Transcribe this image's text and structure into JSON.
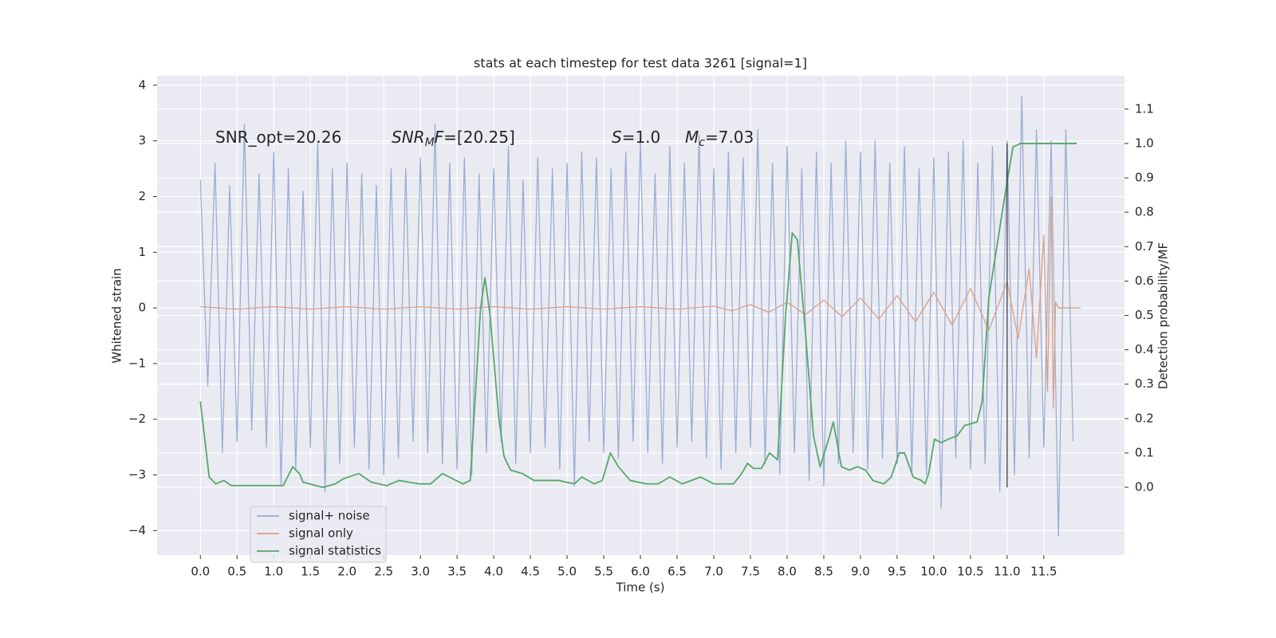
{
  "chart_data": {
    "type": "line",
    "title": "stats at each timestep for test data 3261 [signal=1]",
    "xlabel": "Time (s)",
    "ylabel": "Whitened strain",
    "y2label": "Detection probability/MF",
    "xlim": [
      -0.59,
      12.6
    ],
    "ylim": [
      -4.44,
      4.17
    ],
    "y2lim": [
      -0.197,
      1.197
    ],
    "grid": true,
    "legend_loc": "lower left",
    "xticks": [
      {
        "value": 0,
        "label": "0.0"
      },
      {
        "value": 0.5,
        "label": "0.5"
      },
      {
        "value": 1,
        "label": "1.0"
      },
      {
        "value": 1.5,
        "label": "1.5"
      },
      {
        "value": 2,
        "label": "2.0"
      },
      {
        "value": 2.5,
        "label": "2.5"
      },
      {
        "value": 3,
        "label": "3.0"
      },
      {
        "value": 3.5,
        "label": "3.5"
      },
      {
        "value": 4,
        "label": "4.0"
      },
      {
        "value": 4.5,
        "label": "4.5"
      },
      {
        "value": 5,
        "label": "5.0"
      },
      {
        "value": 5.5,
        "label": "5.5"
      },
      {
        "value": 6,
        "label": "6.0"
      },
      {
        "value": 6.5,
        "label": "6.5"
      },
      {
        "value": 7,
        "label": "7.0"
      },
      {
        "value": 7.5,
        "label": "7.5"
      },
      {
        "value": 8,
        "label": "8.0"
      },
      {
        "value": 8.5,
        "label": "8.5"
      },
      {
        "value": 9,
        "label": "9.0"
      },
      {
        "value": 9.5,
        "label": "9.5"
      },
      {
        "value": 10,
        "label": "10.0"
      },
      {
        "value": 10.5,
        "label": "10.5"
      },
      {
        "value": 11,
        "label": "11.0"
      },
      {
        "value": 11.5,
        "label": "11.5"
      }
    ],
    "yticks": [
      {
        "value": -4,
        "label": "−4"
      },
      {
        "value": -3,
        "label": "−3"
      },
      {
        "value": -2,
        "label": "−2"
      },
      {
        "value": -1,
        "label": "−1"
      },
      0,
      1,
      2,
      3,
      4
    ],
    "y2ticks": [
      {
        "value": 0,
        "label": "0.0"
      },
      {
        "value": 0.1,
        "label": "0.1"
      },
      {
        "value": 0.2,
        "label": "0.2"
      },
      {
        "value": 0.3,
        "label": "0.3"
      },
      {
        "value": 0.4,
        "label": "0.4"
      },
      {
        "value": 0.5,
        "label": "0.5"
      },
      {
        "value": 0.6,
        "label": "0.6"
      },
      {
        "value": 0.7,
        "label": "0.7"
      },
      {
        "value": 0.8,
        "label": "0.8"
      },
      {
        "value": 0.9,
        "label": "0.9"
      },
      {
        "value": 1,
        "label": "1.0"
      },
      {
        "value": 1.1,
        "label": "1.1"
      }
    ],
    "annotations": [
      {
        "parts": [
          {
            "text": "SNR_opt=20.26"
          }
        ]
      },
      {
        "parts": [
          {
            "text": "SNR",
            "italic": true
          },
          {
            "text": "M",
            "italic": true,
            "sub": true
          },
          {
            "text": "F",
            "italic": true
          },
          {
            "text": "=[20.25]"
          }
        ]
      },
      {
        "parts": [
          {
            "text": "S",
            "italic": true
          },
          {
            "text": "=1.0"
          }
        ]
      },
      {
        "parts": [
          {
            "text": "M",
            "italic": true
          },
          {
            "text": "c",
            "italic": true,
            "sub": true
          },
          {
            "text": "=7.03"
          }
        ]
      }
    ],
    "vline": {
      "x": 11.0,
      "ymin": 0.0,
      "ymax": 1.0,
      "axis": "y2",
      "color": "#333333"
    },
    "series": [
      {
        "name": "signal+ noise",
        "color": "#9aaed3",
        "x": [
          0,
          0.1,
          0.2,
          0.3,
          0.4,
          0.5,
          0.6,
          0.7,
          0.8,
          0.9,
          1,
          1.1,
          1.2,
          1.3,
          1.4,
          1.5,
          1.6,
          1.7,
          1.8,
          1.9,
          2,
          2.1,
          2.2,
          2.3,
          2.4,
          2.5,
          2.6,
          2.7,
          2.8,
          2.9,
          3,
          3.1,
          3.2,
          3.3,
          3.4,
          3.5,
          3.6,
          3.7,
          3.8,
          3.9,
          4,
          4.1,
          4.2,
          4.3,
          4.4,
          4.5,
          4.6,
          4.7,
          4.8,
          4.9,
          5,
          5.1,
          5.2,
          5.3,
          5.4,
          5.5,
          5.6,
          5.7,
          5.8,
          5.9,
          6,
          6.1,
          6.2,
          6.3,
          6.4,
          6.5,
          6.6,
          6.7,
          6.8,
          6.9,
          7,
          7.1,
          7.2,
          7.3,
          7.4,
          7.5,
          7.6,
          7.7,
          7.8,
          7.9,
          8,
          8.1,
          8.2,
          8.3,
          8.4,
          8.5,
          8.6,
          8.7,
          8.8,
          8.9,
          9,
          9.1,
          9.2,
          9.3,
          9.4,
          9.5,
          9.6,
          9.7,
          9.8,
          9.9,
          10,
          10.1,
          10.2,
          10.3,
          10.4,
          10.5,
          10.6,
          10.7,
          10.8,
          10.9,
          11,
          11.1,
          11.2,
          11.3,
          11.4,
          11.5,
          11.6,
          11.7,
          11.8,
          11.9
        ],
        "values": [
          2.3,
          -1.4,
          2.6,
          -2.6,
          2.2,
          -2.4,
          3.3,
          -2.2,
          2.4,
          -2.5,
          2.8,
          -3.2,
          2.5,
          -2.9,
          2.1,
          -2.5,
          3.0,
          -3.3,
          2.5,
          -2.8,
          2.6,
          -2.5,
          2.4,
          -2.9,
          2.2,
          -3.0,
          2.5,
          -2.7,
          2.5,
          -2.4,
          2.7,
          -2.6,
          3.3,
          -2.8,
          2.6,
          -2.9,
          2.7,
          -3.0,
          2.4,
          -2.6,
          2.5,
          -2.4,
          2.9,
          -2.8,
          2.3,
          -2.6,
          2.7,
          -2.5,
          2.5,
          -2.9,
          2.6,
          -3.2,
          2.8,
          -2.4,
          2.7,
          -2.6,
          2.5,
          -2.7,
          2.8,
          -2.4,
          3.0,
          -2.6,
          2.4,
          -2.8,
          2.9,
          -2.5,
          2.6,
          -2.4,
          3.1,
          -2.7,
          2.5,
          -2.9,
          2.8,
          -2.6,
          2.7,
          -2.5,
          3.2,
          -2.8,
          2.6,
          -3.0,
          2.9,
          -2.6,
          2.5,
          -3.1,
          2.8,
          -3.2,
          2.6,
          -2.8,
          3.0,
          -2.6,
          2.8,
          -2.9,
          3.0,
          -2.7,
          2.6,
          -2.8,
          2.9,
          -3.0,
          2.5,
          -3.0,
          2.7,
          -3.6,
          2.8,
          -2.7,
          3.0,
          -2.9,
          2.6,
          -2.8,
          2.9,
          -3.3,
          3.0,
          -3.0,
          3.8,
          -2.7,
          3.2,
          -2.5,
          3.0,
          -4.1,
          3.2,
          -2.4
        ]
      },
      {
        "name": "signal only",
        "color": "#d9a088",
        "x": [
          0,
          0.5,
          1,
          1.5,
          2,
          2.5,
          3,
          3.5,
          4,
          4.5,
          5,
          5.5,
          6,
          6.5,
          7,
          7.25,
          7.5,
          7.75,
          8,
          8.25,
          8.5,
          8.75,
          9,
          9.25,
          9.5,
          9.75,
          10,
          10.25,
          10.5,
          10.75,
          11,
          11.15,
          11.3,
          11.4,
          11.5,
          11.55,
          11.6,
          11.63,
          11.66,
          11.7,
          12
        ],
        "values": [
          0.02,
          -0.02,
          0.02,
          -0.02,
          0.02,
          -0.02,
          0.02,
          -0.02,
          0.02,
          -0.02,
          0.02,
          -0.02,
          0.02,
          -0.02,
          0.03,
          -0.05,
          0.06,
          -0.08,
          0.1,
          -0.12,
          0.14,
          -0.16,
          0.18,
          -0.2,
          0.22,
          -0.25,
          0.28,
          -0.31,
          0.35,
          -0.4,
          0.47,
          -0.55,
          0.7,
          -0.9,
          1.3,
          -1.5,
          2.0,
          -1.8,
          0.1,
          0.0,
          0.0
        ]
      },
      {
        "name": "signal statistics",
        "color": "#55a868",
        "axis": "y2",
        "x": [
          0,
          0.12,
          0.21,
          0.32,
          0.42,
          0.64,
          0.97,
          1.13,
          1.26,
          1.35,
          1.4,
          1.67,
          1.84,
          1.95,
          2.16,
          2.33,
          2.54,
          2.71,
          2.98,
          3.14,
          3.3,
          3.58,
          3.68,
          3.82,
          3.88,
          3.95,
          4.07,
          4.14,
          4.23,
          4.39,
          4.55,
          4.88,
          5.1,
          5.2,
          5.37,
          5.48,
          5.59,
          5.7,
          5.86,
          6.08,
          6.24,
          6.4,
          6.57,
          6.82,
          7.0,
          7.27,
          7.38,
          7.46,
          7.54,
          7.65,
          7.76,
          7.87,
          7.98,
          8.07,
          8.14,
          8.25,
          8.36,
          8.45,
          8.58,
          8.63,
          8.74,
          8.85,
          8.96,
          9.07,
          9.17,
          9.32,
          9.42,
          9.53,
          9.6,
          9.72,
          9.83,
          9.88,
          9.93,
          10.01,
          10.1,
          10.2,
          10.32,
          10.42,
          10.59,
          10.66,
          10.75,
          10.86,
          10.97,
          11.08,
          11.18,
          11.95
        ],
        "values": [
          0.25,
          0.03,
          0.01,
          0.02,
          0.005,
          0.005,
          0.005,
          0.005,
          0.06,
          0.04,
          0.015,
          0.0,
          0.01,
          0.025,
          0.04,
          0.015,
          0.005,
          0.02,
          0.01,
          0.01,
          0.04,
          0.01,
          0.02,
          0.52,
          0.61,
          0.5,
          0.2,
          0.09,
          0.05,
          0.04,
          0.02,
          0.02,
          0.01,
          0.03,
          0.01,
          0.02,
          0.1,
          0.06,
          0.02,
          0.01,
          0.01,
          0.03,
          0.01,
          0.03,
          0.01,
          0.01,
          0.04,
          0.07,
          0.055,
          0.055,
          0.1,
          0.08,
          0.5,
          0.74,
          0.72,
          0.45,
          0.15,
          0.06,
          0.15,
          0.19,
          0.06,
          0.05,
          0.06,
          0.05,
          0.02,
          0.01,
          0.03,
          0.1,
          0.1,
          0.03,
          0.02,
          0.01,
          0.04,
          0.14,
          0.13,
          0.14,
          0.15,
          0.18,
          0.19,
          0.25,
          0.55,
          0.7,
          0.85,
          0.99,
          1.0,
          1.0
        ]
      }
    ]
  }
}
